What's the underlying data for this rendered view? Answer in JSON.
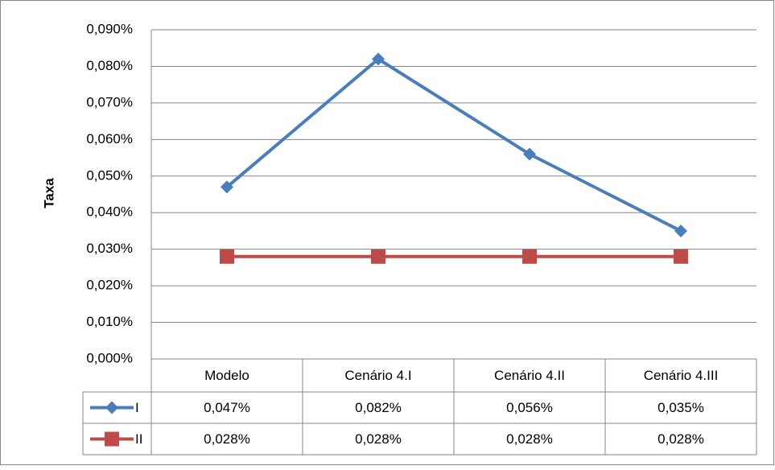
{
  "chart_data": {
    "type": "line",
    "y_label": "Taxa",
    "categories": [
      "Modelo",
      "Cenário 4.I",
      "Cenário 4.II",
      "Cenário 4.III"
    ],
    "series": [
      {
        "name": "I",
        "color": "#4a7ebb",
        "marker": "diamond",
        "values": [
          0.047,
          0.082,
          0.056,
          0.035
        ],
        "value_labels": [
          "0,047%",
          "0,082%",
          "0,056%",
          "0,035%"
        ]
      },
      {
        "name": "II",
        "color": "#be4b48",
        "marker": "square",
        "values": [
          0.028,
          0.028,
          0.028,
          0.028
        ],
        "value_labels": [
          "0,028%",
          "0,028%",
          "0,028%",
          "0,028%"
        ]
      }
    ],
    "ylim": [
      0,
      0.09
    ],
    "yticks": [
      {
        "value": 0,
        "label": "0,000%"
      },
      {
        "value": 0.01,
        "label": "0,010%"
      },
      {
        "value": 0.02,
        "label": "0,020%"
      },
      {
        "value": 0.03,
        "label": "0,030%"
      },
      {
        "value": 0.04,
        "label": "0,040%"
      },
      {
        "value": 0.05,
        "label": "0,050%"
      },
      {
        "value": 0.06,
        "label": "0,060%"
      },
      {
        "value": 0.07,
        "label": "0,070%"
      },
      {
        "value": 0.08,
        "label": "0,080%"
      },
      {
        "value": 0.09,
        "label": "0,090%"
      }
    ],
    "grid": true
  }
}
